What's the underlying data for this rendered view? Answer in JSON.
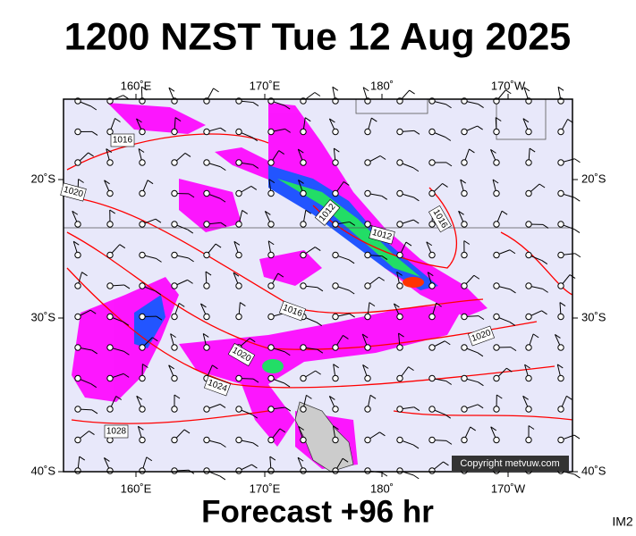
{
  "header": {
    "title": "1200 NZST Tue 12 Aug 2025"
  },
  "footer": {
    "forecast": "Forecast +96 hr",
    "id": "IM2"
  },
  "copyright": "Copyright metvuw.com",
  "axes": {
    "top_labels": [
      "160˚E",
      "170˚E",
      "180˚",
      "170˚W"
    ],
    "bottom_labels": [
      "160˚E",
      "170˚E",
      "180˚",
      "170˚W"
    ],
    "left_labels": [
      "20˚S",
      "30˚S",
      "40˚S"
    ],
    "right_labels": [
      "20˚S",
      "30˚S",
      "40˚S"
    ]
  },
  "isobar_labels": [
    "1016",
    "1020",
    "1012",
    "1016",
    "1012",
    "1016",
    "1020",
    "1020",
    "1024",
    "1028"
  ]
}
